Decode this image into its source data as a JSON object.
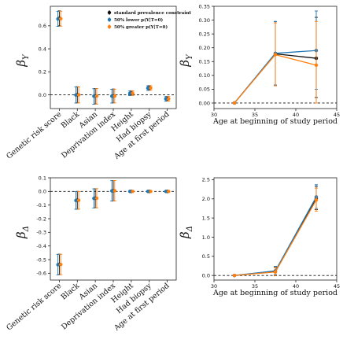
{
  "colors": {
    "standard": "#111111",
    "lower": "#1f77b4",
    "greater": "#ff7f0e"
  },
  "chart_data": [
    {
      "type": "scatter",
      "ylabel": "β_Y",
      "ylabel_symbol": "β",
      "ylabel_sub": "Y",
      "categories": [
        "Genetic risk score",
        "Black",
        "Asian",
        "Deprivation index",
        "Height",
        "Had biopsy",
        "Age at first period"
      ],
      "ylim": [
        -0.12,
        0.77
      ],
      "yticks": [
        "0.0",
        "0.2",
        "0.4",
        "0.6"
      ],
      "ytick_values": [
        0,
        0.2,
        0.4,
        0.6
      ],
      "legend": {
        "position": "top-right",
        "entries": [
          "standard prevalence constraint",
          "50% lower p(Y|T=0)",
          "50% greater p(Y|T=0)"
        ]
      },
      "series": [
        {
          "name": "standard prevalence constraint",
          "color": "standard",
          "values": [
            0.665,
            0.0,
            -0.01,
            -0.01,
            0.015,
            0.06,
            -0.035
          ],
          "err_low": [
            0.6,
            -0.07,
            -0.08,
            -0.07,
            -0.005,
            0.04,
            -0.055
          ],
          "err_high": [
            0.73,
            0.07,
            0.055,
            0.05,
            0.035,
            0.08,
            -0.015
          ]
        },
        {
          "name": "50% lower p(Y|T=0)",
          "color": "lower",
          "values": [
            0.66,
            -0.002,
            -0.012,
            -0.012,
            0.013,
            0.058,
            -0.036
          ],
          "err_low": [
            0.595,
            -0.072,
            -0.082,
            -0.072,
            -0.007,
            0.038,
            -0.056
          ],
          "err_high": [
            0.725,
            0.068,
            0.053,
            0.048,
            0.033,
            0.078,
            -0.016
          ]
        },
        {
          "name": "50% greater p(Y|T=0)",
          "color": "greater",
          "values": [
            0.662,
            -0.001,
            -0.011,
            -0.011,
            0.014,
            0.059,
            -0.035
          ],
          "err_low": [
            0.597,
            -0.071,
            -0.081,
            -0.071,
            -0.006,
            0.039,
            -0.055
          ],
          "err_high": [
            0.727,
            0.069,
            0.054,
            0.049,
            0.034,
            0.079,
            -0.015
          ]
        }
      ]
    },
    {
      "type": "line",
      "ylabel": "β_Y",
      "ylabel_symbol": "β",
      "ylabel_sub": "Y",
      "xlabel": "Age at beginning of study period",
      "xlim": [
        30,
        45
      ],
      "xticks": [
        "30",
        "35",
        "40",
        "45"
      ],
      "xtick_values": [
        30,
        35,
        40,
        45
      ],
      "ylim": [
        -0.02,
        0.35
      ],
      "yticks": [
        "0.00",
        "0.05",
        "0.10",
        "0.15",
        "0.20",
        "0.25",
        "0.30",
        "0.35"
      ],
      "ytick_values": [
        0,
        0.05,
        0.1,
        0.15,
        0.2,
        0.25,
        0.3,
        0.35
      ],
      "x": [
        32.5,
        37.5,
        42.5
      ],
      "series": [
        {
          "name": "standard prevalence constraint",
          "color": "standard",
          "values": [
            0.0,
            0.178,
            0.162
          ],
          "err_low": [
            0.0,
            0.065,
            0.02
          ],
          "err_high": [
            0.0,
            0.295,
            0.31
          ]
        },
        {
          "name": "50% lower p(Y|T=0)",
          "color": "lower",
          "values": [
            0.0,
            0.18,
            0.19
          ],
          "err_low": [
            0.0,
            0.065,
            0.05
          ],
          "err_high": [
            0.0,
            0.295,
            0.333
          ]
        },
        {
          "name": "50% greater p(Y|T=0)",
          "color": "greater",
          "values": [
            0.0,
            0.175,
            0.137
          ],
          "err_low": [
            0.0,
            0.062,
            0.0
          ],
          "err_high": [
            0.0,
            0.29,
            0.295
          ]
        }
      ]
    },
    {
      "type": "scatter",
      "ylabel": "β_Δ",
      "ylabel_symbol": "β",
      "ylabel_sub": "Δ",
      "categories": [
        "Genetic risk score",
        "Black",
        "Asian",
        "Deprivation index",
        "Height",
        "Had biopsy",
        "Age at first period"
      ],
      "ylim": [
        -0.65,
        0.1
      ],
      "yticks": [
        "0.1",
        "0.0",
        "-0.1",
        "-0.2",
        "-0.3",
        "-0.4",
        "-0.5",
        "-0.6"
      ],
      "ytick_values": [
        0.1,
        0,
        -0.1,
        -0.2,
        -0.3,
        -0.4,
        -0.5,
        -0.6
      ],
      "series": [
        {
          "name": "standard prevalence constraint",
          "color": "standard",
          "values": [
            -0.535,
            -0.065,
            -0.05,
            0.005,
            0.0,
            0.0,
            0.0
          ],
          "err_low": [
            -0.61,
            -0.13,
            -0.12,
            -0.07,
            -0.002,
            -0.002,
            -0.002
          ],
          "err_high": [
            -0.46,
            0.0,
            0.02,
            0.08,
            0.002,
            0.002,
            0.002
          ]
        },
        {
          "name": "50% lower p(Y|T=0)",
          "color": "lower",
          "values": [
            -0.537,
            -0.066,
            -0.051,
            0.004,
            0.0,
            0.0,
            0.0
          ],
          "err_low": [
            -0.612,
            -0.131,
            -0.121,
            -0.071,
            -0.002,
            -0.002,
            -0.002
          ],
          "err_high": [
            -0.462,
            -0.001,
            0.019,
            0.079,
            0.002,
            0.002,
            0.002
          ]
        },
        {
          "name": "50% greater p(Y|T=0)",
          "color": "greater",
          "values": [
            -0.536,
            -0.065,
            -0.05,
            0.005,
            0.0,
            0.0,
            0.0
          ],
          "err_low": [
            -0.611,
            -0.13,
            -0.12,
            -0.07,
            -0.002,
            -0.002,
            -0.002
          ],
          "err_high": [
            -0.461,
            0.0,
            0.02,
            0.08,
            0.002,
            0.002,
            0.002
          ]
        }
      ]
    },
    {
      "type": "line",
      "ylabel": "β_Δ",
      "ylabel_symbol": "β",
      "ylabel_sub": "Δ",
      "xlabel": "Age at beginning of study period",
      "xlim": [
        30,
        45
      ],
      "xticks": [
        "30",
        "35",
        "40",
        "45"
      ],
      "xtick_values": [
        30,
        35,
        40,
        45
      ],
      "ylim": [
        -0.12,
        2.55
      ],
      "yticks": [
        "0.0",
        "0.5",
        "1.0",
        "1.5",
        "2.0",
        "2.5"
      ],
      "ytick_values": [
        0,
        0.5,
        1.0,
        1.5,
        2.0,
        2.5
      ],
      "x": [
        32.5,
        37.5,
        42.5
      ],
      "series": [
        {
          "name": "standard prevalence constraint",
          "color": "standard",
          "values": [
            0.0,
            0.1,
            2.01
          ],
          "err_low": [
            0.0,
            0.0,
            1.72
          ],
          "err_high": [
            0.0,
            0.22,
            2.33
          ]
        },
        {
          "name": "50% lower p(Y|T=0)",
          "color": "lower",
          "values": [
            0.0,
            0.12,
            2.05
          ],
          "err_low": [
            0.0,
            0.02,
            1.75
          ],
          "err_high": [
            0.0,
            0.24,
            2.37
          ]
        },
        {
          "name": "50% greater p(Y|T=0)",
          "color": "greater",
          "values": [
            0.0,
            0.09,
            1.97
          ],
          "err_low": [
            0.0,
            -0.01,
            1.68
          ],
          "err_high": [
            0.0,
            0.21,
            2.28
          ]
        }
      ]
    }
  ]
}
